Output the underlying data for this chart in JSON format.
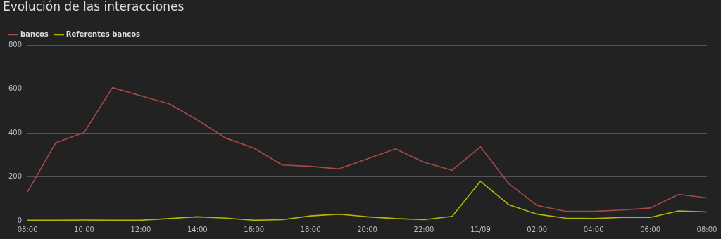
{
  "chart_data": {
    "type": "line",
    "title": "Evolución de las interacciones",
    "categories": [
      "08:00",
      null,
      "10:00",
      null,
      "12:00",
      null,
      "14:00",
      null,
      "16:00",
      null,
      "18:00",
      null,
      "20:00",
      null,
      "22:00",
      null,
      "11/09",
      null,
      "02:00",
      null,
      "04:00",
      null,
      "06:00",
      null,
      "08:00"
    ],
    "series": [
      {
        "name": "bancos",
        "color": "#a84848",
        "values": [
          132,
          356,
          402,
          607,
          570,
          533,
          460,
          377,
          331,
          254,
          248,
          236,
          282,
          328,
          267,
          230,
          337,
          169,
          70,
          43,
          43,
          49,
          58,
          120,
          104
        ]
      },
      {
        "name": "Referentes bancos",
        "color": "#b5b800",
        "values": [
          2,
          2,
          3,
          2,
          2,
          10,
          18,
          12,
          2,
          5,
          22,
          30,
          18,
          10,
          5,
          20,
          180,
          73,
          30,
          12,
          10,
          15,
          15,
          45,
          40
        ]
      }
    ],
    "ylim": [
      0,
      800
    ],
    "yticks": [
      0,
      200,
      400,
      600,
      800
    ],
    "grid": "y",
    "legend": "top left",
    "marker": "none",
    "line_style": "solid"
  }
}
